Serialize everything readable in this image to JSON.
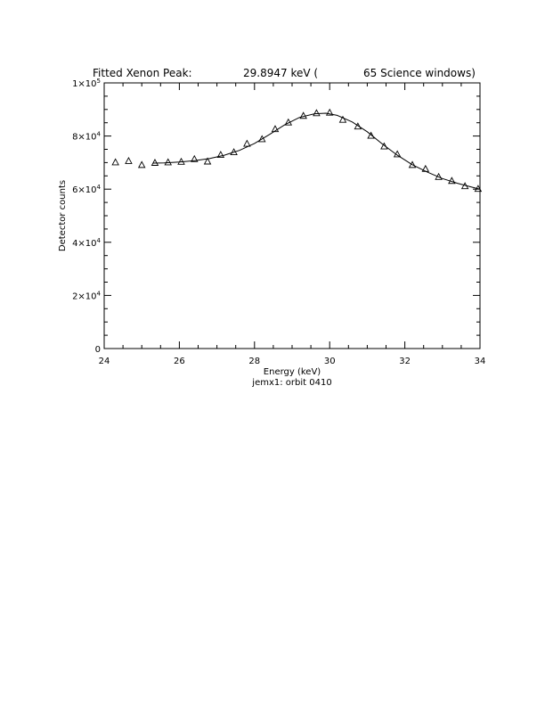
{
  "page": {
    "title_parts": [
      "Fitted Xenon Peak:",
      "29.8947 keV (",
      "65 Science windows)"
    ],
    "caption": "jemx1: orbit 0410"
  },
  "chart_data": {
    "type": "scatter",
    "title": "Fitted Xenon Peak:     29.8947 keV (      65 Science windows)",
    "xlabel": "Energy (keV)",
    "ylabel": "Detector counts",
    "xlim": [
      24,
      34
    ],
    "ylim": [
      0,
      100000
    ],
    "x_ticks": [
      24,
      26,
      28,
      30,
      32,
      34
    ],
    "y_ticks": [
      0,
      20000,
      40000,
      60000,
      80000,
      100000
    ],
    "y_tick_labels": [
      {
        "mantissa": "0",
        "exp": ""
      },
      {
        "mantissa": "2×10",
        "exp": "4"
      },
      {
        "mantissa": "4×10",
        "exp": "4"
      },
      {
        "mantissa": "6×10",
        "exp": "4"
      },
      {
        "mantissa": "8×10",
        "exp": "4"
      },
      {
        "mantissa": "1×10",
        "exp": "5"
      }
    ],
    "grid": false,
    "series": [
      {
        "marker": "triangle",
        "x": [
          24.3,
          24.65,
          25.0,
          25.35,
          25.7,
          26.05,
          26.4,
          26.75,
          27.1,
          27.45,
          27.8,
          28.2,
          28.55,
          28.9,
          29.3,
          29.65,
          30.0,
          30.35,
          30.75,
          31.1,
          31.45,
          31.8,
          32.2,
          32.55,
          32.9,
          33.25,
          33.6,
          33.95
        ],
        "y": [
          70000,
          70500,
          69000,
          69800,
          70000,
          70200,
          71200,
          70300,
          72800,
          73800,
          77000,
          78700,
          82500,
          85000,
          87500,
          88500,
          88700,
          86000,
          83500,
          80000,
          76000,
          73000,
          69000,
          67500,
          64500,
          63000,
          61000,
          60000
        ]
      },
      {
        "style": "line",
        "x": [
          25.3,
          25.6,
          26.0,
          26.4,
          26.8,
          27.2,
          27.6,
          28.0,
          28.4,
          28.8,
          29.2,
          29.6,
          29.9,
          30.2,
          30.6,
          31.0,
          31.4,
          31.8,
          32.2,
          32.6,
          33.0,
          33.4,
          33.8,
          34.0
        ],
        "y": [
          69800,
          69900,
          70200,
          70700,
          71500,
          72800,
          74600,
          77200,
          80600,
          84200,
          87000,
          88400,
          88600,
          87800,
          85300,
          81600,
          77000,
          72800,
          69200,
          66400,
          64000,
          62200,
          60700,
          60000
        ]
      }
    ]
  }
}
